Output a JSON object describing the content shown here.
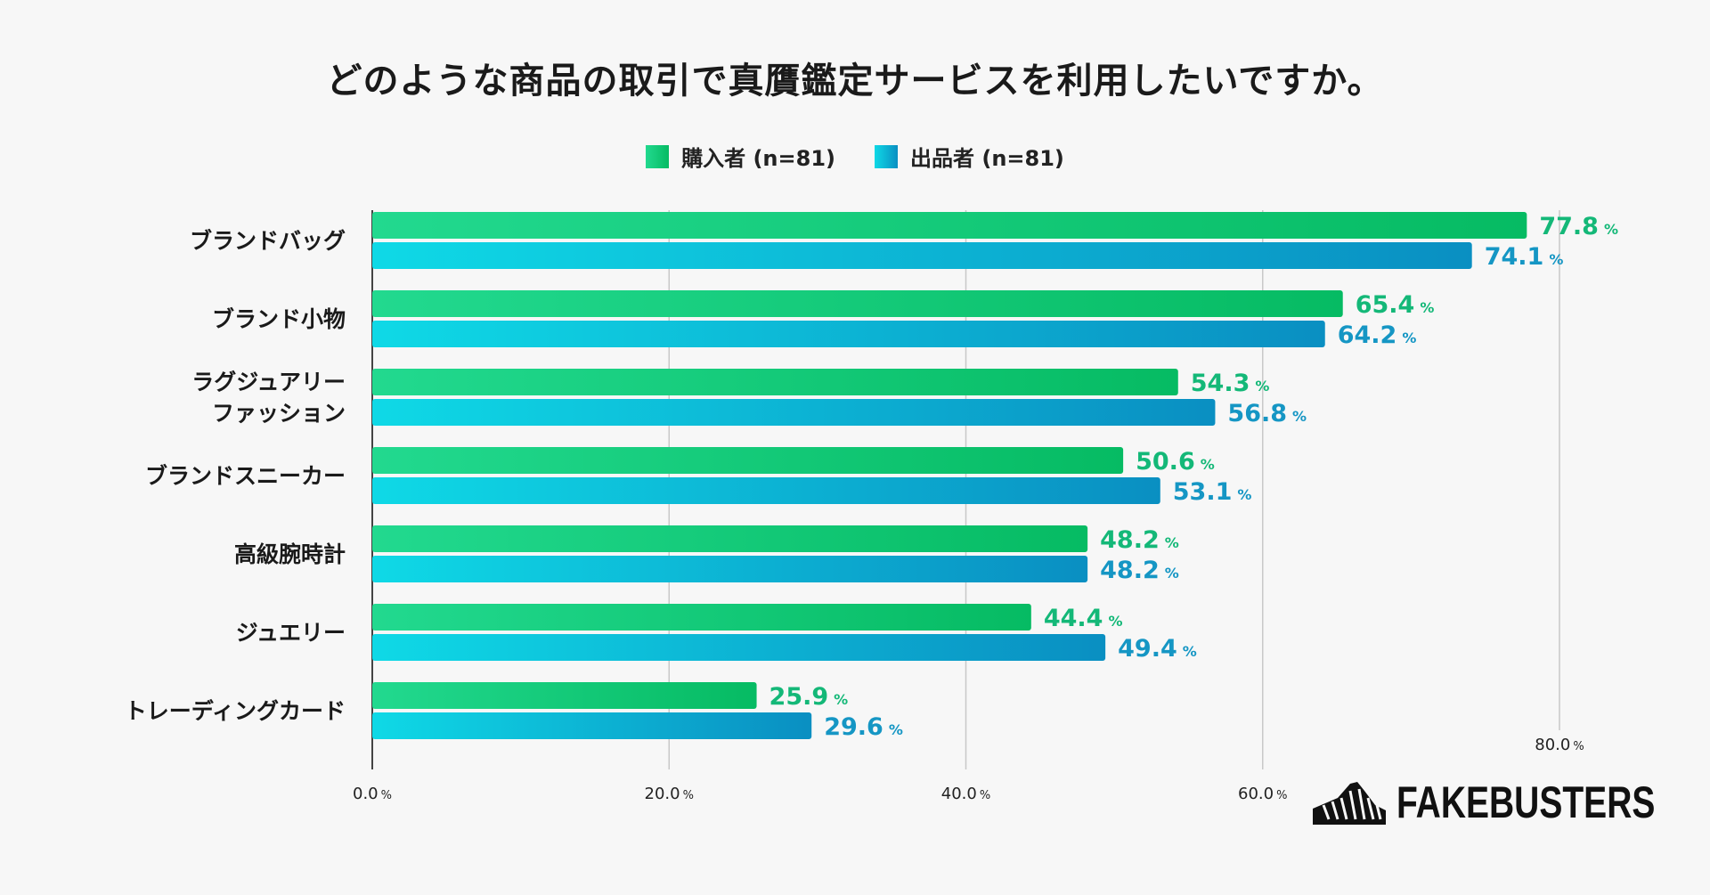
{
  "title": "どのような商品の取引で真贋鑑定サービスを利用したいですか。",
  "brand": {
    "name": "FAKEBUSTERS",
    "logo_icon": "sneaker-logo-icon"
  },
  "colors": {
    "buyer_start": "#22d98f",
    "buyer_end": "#06bb63",
    "buyer_text": "#14b878",
    "seller_start": "#0fd9e6",
    "seller_end": "#0a8fc2",
    "seller_text": "#1596c4",
    "grid": "#c8c8c8",
    "axis": "#444444"
  },
  "chart_data": {
    "type": "bar",
    "orientation": "horizontal",
    "title": "どのような商品の取引で真贋鑑定サービスを利用したいですか。",
    "categories": [
      "ブランドバッグ",
      "ブランド小物",
      "ラグジュアリー\nファッション",
      "ブランドスニーカー",
      "高級腕時計",
      "ジュエリー",
      "トレーディングカード"
    ],
    "series": [
      {
        "name": "購入者 (n=81)",
        "values": [
          77.8,
          65.4,
          54.3,
          50.6,
          48.2,
          44.4,
          25.9
        ]
      },
      {
        "name": "出品者 (n=81)",
        "values": [
          74.1,
          64.2,
          56.8,
          53.1,
          48.2,
          49.4,
          29.6
        ]
      }
    ],
    "xlim": [
      0,
      80
    ],
    "ticks": [
      0,
      20,
      40,
      60,
      80
    ],
    "tick_labels": [
      "0.0",
      "20.0",
      "40.0",
      "60.0",
      "80.0"
    ],
    "unit": "%",
    "grid": true,
    "legend": "top-center"
  }
}
